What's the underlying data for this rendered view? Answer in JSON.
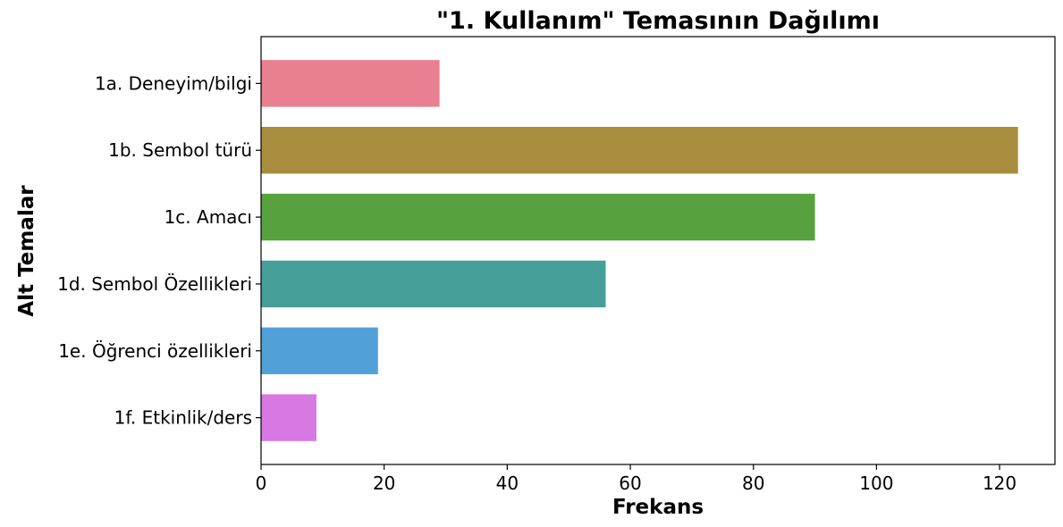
{
  "chart_data": {
    "type": "bar",
    "orientation": "horizontal",
    "title": "\"1. Kullanım\" Temasının Dağılımı",
    "xlabel": "Frekans",
    "ylabel": "Alt Temalar",
    "categories": [
      "1a. Deneyim/bilgi",
      "1b. Sembol türü",
      "1c. Amacı",
      "1d. Sembol Özellikleri",
      "1e. Öğrenci özellikleri",
      "1f. Etkinlik/ders"
    ],
    "values": [
      29,
      123,
      90,
      56,
      19,
      9
    ],
    "colors": [
      "#e88091",
      "#a98d3f",
      "#57a23e",
      "#479f9a",
      "#52a0d8",
      "#d878e3"
    ],
    "xlim": [
      0,
      129
    ],
    "xticks": [
      0,
      20,
      40,
      60,
      80,
      100,
      120
    ],
    "grid": false,
    "legend": "none"
  }
}
